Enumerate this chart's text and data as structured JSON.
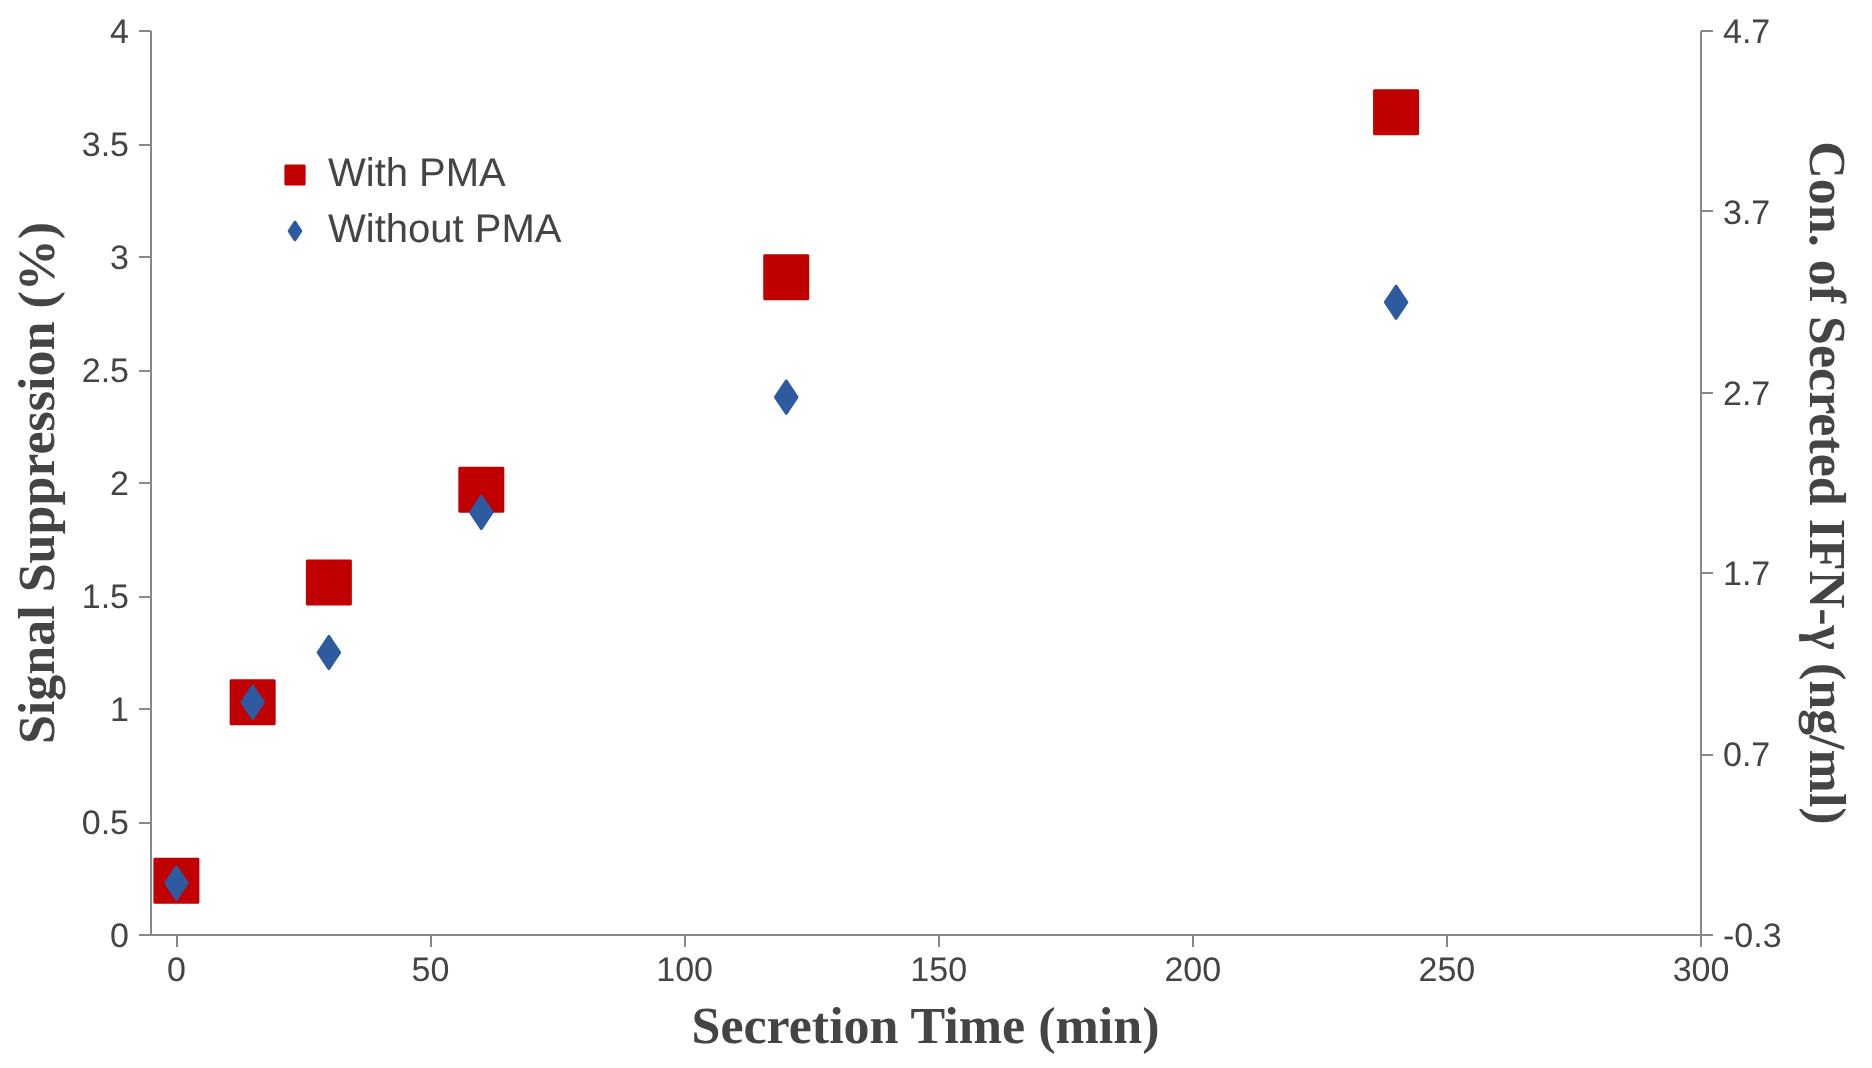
{
  "chart_data": {
    "type": "scatter",
    "xlabel": "Secretion Time (min)",
    "ylabel": "Signal Suppression (%)",
    "y2label": "Con. of Secreted IFN-γ (ng/ml)",
    "x": [
      0,
      15,
      30,
      60,
      120,
      240
    ],
    "series": [
      {
        "name": "With PMA",
        "color": "#c00000",
        "marker": "square",
        "values": [
          0.24,
          1.03,
          1.56,
          1.97,
          2.91,
          3.64
        ]
      },
      {
        "name": "Without PMA",
        "color": "#2e5aa0",
        "marker": "diamond",
        "values": [
          0.23,
          1.03,
          1.25,
          1.87,
          2.38,
          2.8
        ]
      }
    ],
    "xlim": [
      -5,
      300
    ],
    "xticks": [
      0,
      50,
      100,
      150,
      200,
      250,
      300
    ],
    "ylim": [
      0,
      4
    ],
    "yticks": [
      0,
      0.5,
      1,
      1.5,
      2,
      2.5,
      3,
      3.5,
      4
    ],
    "y2lim": [
      -0.3,
      4.7
    ],
    "y2ticks": [
      -0.3,
      0.7,
      1.7,
      2.7,
      3.7,
      4.7
    ],
    "grid": false,
    "legend": "top left"
  }
}
